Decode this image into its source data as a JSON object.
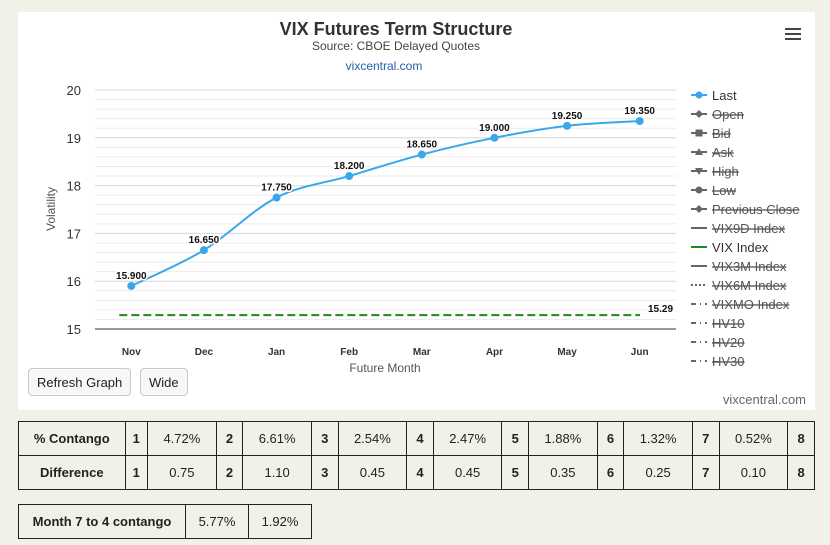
{
  "chart_data": {
    "type": "line",
    "title": "VIX Futures Term Structure",
    "subtitle": "Source: CBOE Delayed Quotes",
    "source_link": "vixcentral.com",
    "xlabel": "Future Month",
    "ylabel": "Volatility",
    "categories": [
      "Nov",
      "Dec",
      "Jan",
      "Feb",
      "Mar",
      "Apr",
      "May",
      "Jun"
    ],
    "ylim": [
      15,
      20
    ],
    "yticks": [
      15,
      16,
      17,
      18,
      19,
      20
    ],
    "series": [
      {
        "name": "Last",
        "values": [
          15.9,
          16.65,
          17.75,
          18.2,
          18.65,
          19.0,
          19.25,
          19.35
        ],
        "labels": [
          "15.900",
          "16.650",
          "17.750",
          "18.200",
          "18.650",
          "19.000",
          "19.250",
          "19.350"
        ],
        "color": "#3aa7ea"
      },
      {
        "name": "VIX Index",
        "values": [
          15.29,
          15.29,
          15.29,
          15.29,
          15.29,
          15.29,
          15.29,
          15.29
        ],
        "end_label": "15.29",
        "color": "#1e8a1e"
      }
    ],
    "legend": {
      "position": "right",
      "items": [
        {
          "label": "Last",
          "symbol": "circle",
          "active": true,
          "color": "#3aa7ea"
        },
        {
          "label": "Open",
          "symbol": "diamond",
          "active": false,
          "color": "#555555"
        },
        {
          "label": "Bid",
          "symbol": "square",
          "active": false,
          "color": "#555555"
        },
        {
          "label": "Ask",
          "symbol": "triangle",
          "active": false,
          "color": "#555555"
        },
        {
          "label": "High",
          "symbol": "triangle-down",
          "active": false,
          "color": "#555555"
        },
        {
          "label": "Low",
          "symbol": "circle",
          "active": false,
          "color": "#555555"
        },
        {
          "label": "Previous Close",
          "symbol": "diamond",
          "active": false,
          "color": "#555555"
        },
        {
          "label": "VIX9D Index",
          "symbol": "line",
          "active": false,
          "color": "#555555"
        },
        {
          "label": "VIX Index",
          "symbol": "line",
          "active": true,
          "color": "#1e8a1e"
        },
        {
          "label": "VIX3M Index",
          "symbol": "line",
          "active": false,
          "color": "#555555"
        },
        {
          "label": "VIX6M Index",
          "symbol": "dotted",
          "active": false,
          "color": "#555555"
        },
        {
          "label": "VIXMO Index",
          "symbol": "dashdot",
          "active": false,
          "color": "#555555"
        },
        {
          "label": "HV10",
          "symbol": "dashdot",
          "active": false,
          "color": "#555555"
        },
        {
          "label": "HV20",
          "symbol": "dashdot",
          "active": false,
          "color": "#555555"
        },
        {
          "label": "HV30",
          "symbol": "dashdot",
          "active": false,
          "color": "#555555"
        }
      ]
    }
  },
  "buttons": {
    "refresh": "Refresh Graph",
    "wide": "Wide"
  },
  "credit": "vixcentral.com",
  "contango_table": {
    "rows": [
      {
        "label": "% Contango",
        "cells": [
          [
            "1",
            "4.72%"
          ],
          [
            "2",
            "6.61%"
          ],
          [
            "3",
            "2.54%"
          ],
          [
            "4",
            "2.47%"
          ],
          [
            "5",
            "1.88%"
          ],
          [
            "6",
            "1.32%"
          ],
          [
            "7",
            "0.52%"
          ],
          [
            "8",
            ""
          ]
        ]
      },
      {
        "label": "Difference",
        "cells": [
          [
            "1",
            "0.75"
          ],
          [
            "2",
            "1.10"
          ],
          [
            "3",
            "0.45"
          ],
          [
            "4",
            "0.45"
          ],
          [
            "5",
            "0.35"
          ],
          [
            "6",
            "0.25"
          ],
          [
            "7",
            "0.10"
          ],
          [
            "8",
            ""
          ]
        ]
      }
    ]
  },
  "month7to4": {
    "label": "Month 7 to 4 contango",
    "value1": "5.77%",
    "value2": "1.92%"
  }
}
